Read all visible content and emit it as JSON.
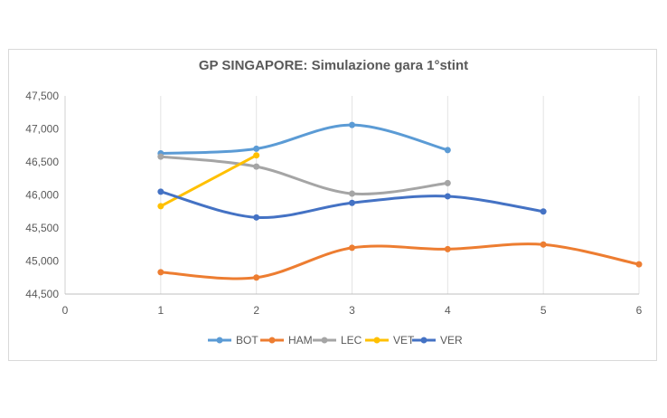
{
  "chart_data": {
    "type": "line",
    "title": "GP SINGAPORE: Simulazione gara 1°stint",
    "xlabel": "",
    "ylabel": "",
    "xlim": [
      0,
      6
    ],
    "ylim": [
      44500,
      47500
    ],
    "x_ticks": [
      "0",
      "1",
      "2",
      "3",
      "4",
      "5",
      "6"
    ],
    "y_ticks": [
      "44,500",
      "45,000",
      "45,500",
      "46,000",
      "46,500",
      "47,000",
      "47,500"
    ],
    "grid": "vertical",
    "legend_position": "bottom",
    "smooth": true,
    "series": [
      {
        "name": "BOT",
        "color": "#5b9bd5",
        "x": [
          1,
          2,
          3,
          4
        ],
        "y": [
          46630,
          46700,
          47060,
          46680
        ]
      },
      {
        "name": "HAM",
        "color": "#ed7d31",
        "x": [
          1,
          2,
          3,
          4,
          5,
          6
        ],
        "y": [
          44830,
          44750,
          45200,
          45180,
          45250,
          44950
        ]
      },
      {
        "name": "LEC",
        "color": "#a5a5a5",
        "x": [
          1,
          2,
          3,
          4
        ],
        "y": [
          46580,
          46430,
          46020,
          46180
        ]
      },
      {
        "name": "VET",
        "color": "#ffc000",
        "x": [
          1,
          2
        ],
        "y": [
          45830,
          46600
        ]
      },
      {
        "name": "VER",
        "color": "#4472c4",
        "x": [
          1,
          2,
          3,
          4,
          5
        ],
        "y": [
          46050,
          45660,
          45880,
          45980,
          45750
        ]
      }
    ]
  }
}
